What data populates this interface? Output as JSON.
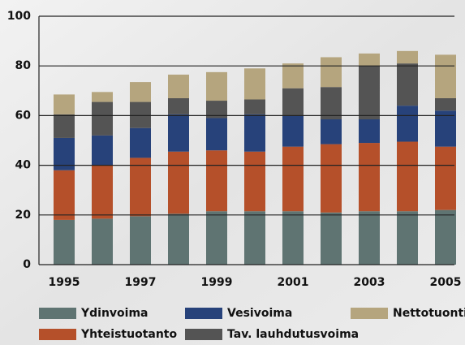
{
  "chart_data": {
    "type": "stacked_bar",
    "categories": [
      "1995",
      null,
      "1997",
      null,
      "1999",
      null,
      "2001",
      null,
      "2003",
      null,
      "2005"
    ],
    "series": [
      {
        "name": "Ydinvoima",
        "color": "#5f7472",
        "values": [
          18,
          18.5,
          19.5,
          20.5,
          21.5,
          21.5,
          21.5,
          21,
          21.5,
          21.5,
          22
        ]
      },
      {
        "name": "Yhteistuotanto",
        "color": "#b5502a",
        "values": [
          20,
          21.5,
          23.5,
          25,
          24.5,
          24,
          26,
          27.5,
          27.5,
          28,
          25.5
        ]
      },
      {
        "name": "Vesivoima",
        "color": "#27427a",
        "values": [
          13,
          12,
          12,
          15,
          13,
          15,
          12.5,
          10,
          9.5,
          14.5,
          14.5
        ]
      },
      {
        "name": "Tav. lauhdutusvoima",
        "color": "#545454",
        "values": [
          9.5,
          13.5,
          10.5,
          6.5,
          7,
          6,
          11,
          13,
          21.5,
          17,
          5
        ]
      },
      {
        "name": "Nettotuonti",
        "color": "#b5a57e",
        "values": [
          8,
          4,
          8,
          9.5,
          11.5,
          12.5,
          10,
          12,
          5,
          5,
          17.5
        ]
      }
    ],
    "ylim": [
      0,
      100
    ],
    "yticks": [
      0,
      20,
      40,
      60,
      80,
      100
    ],
    "grid": true
  }
}
